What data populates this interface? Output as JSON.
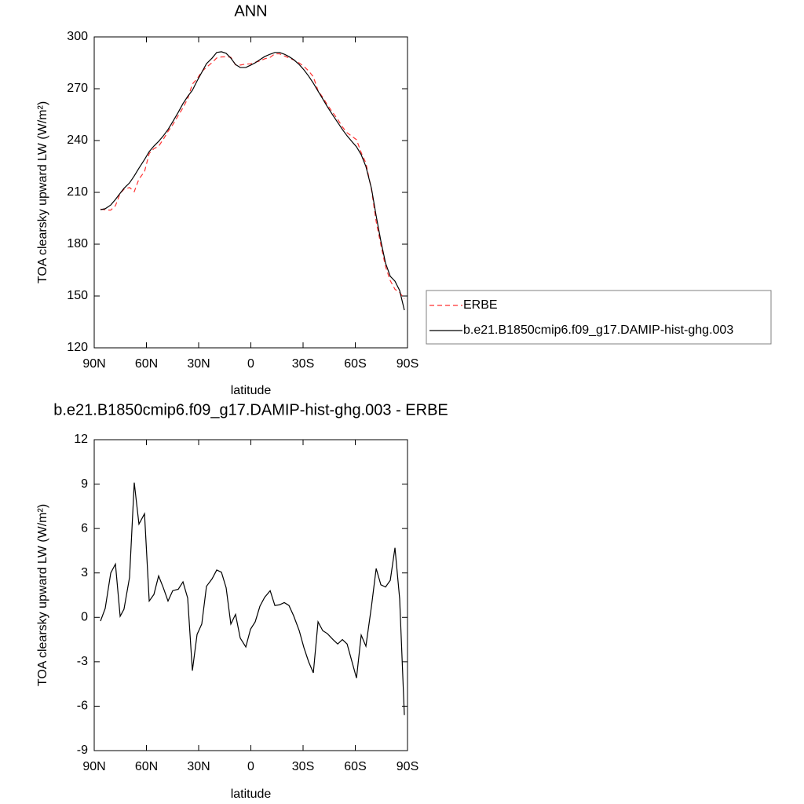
{
  "chart_data": [
    {
      "type": "line",
      "title": "ANN",
      "xlabel": "latitude",
      "ylabel": "TOA clearsky upward LW (W/m²)",
      "xlim": [
        90,
        -90
      ],
      "xticks": [
        {
          "value": 90,
          "label": "90N"
        },
        {
          "value": 60,
          "label": "60N"
        },
        {
          "value": 30,
          "label": "30N"
        },
        0,
        {
          "value": -30,
          "label": "30S"
        },
        {
          "value": -60,
          "label": "60S"
        },
        {
          "value": -90,
          "label": "90S"
        }
      ],
      "ylim": [
        120,
        300
      ],
      "yticks": [
        120,
        150,
        180,
        210,
        240,
        270,
        300
      ],
      "legend": "right",
      "x": [
        86.4,
        83.7,
        80.5,
        77.8,
        75.1,
        72.9,
        69.7,
        67.0,
        64.3,
        61.1,
        58.4,
        55.7,
        53.0,
        50.3,
        47.6,
        44.9,
        41.7,
        39.0,
        36.3,
        33.6,
        30.9,
        28.2,
        25.5,
        22.3,
        19.6,
        16.9,
        14.2,
        11.5,
        8.8,
        6.1,
        2.9,
        0.2,
        -2.5,
        -5.2,
        -7.9,
        -11.1,
        -13.8,
        -16.5,
        -19.2,
        -21.9,
        -24.6,
        -27.8,
        -30.5,
        -33.2,
        -35.9,
        -38.6,
        -41.3,
        -44.0,
        -47.2,
        -49.9,
        -52.6,
        -55.3,
        -58.0,
        -60.7,
        -63.4,
        -66.1,
        -69.3,
        -72.0,
        -74.7,
        -77.4,
        -80.1,
        -82.8,
        -85.5,
        -88.2
      ],
      "series": [
        {
          "name": "ERBE",
          "color": "#ff3030",
          "linestyle": "dashed",
          "values": [
            200.3,
            199.9,
            199.7,
            202.3,
            209.4,
            211.8,
            212.8,
            210.4,
            217.7,
            222.0,
            232.5,
            235.3,
            236.7,
            240.7,
            245.3,
            249.1,
            254.5,
            259.0,
            264.2,
            272.7,
            275.7,
            280.0,
            282.4,
            285.1,
            287.8,
            288.4,
            288.5,
            288.2,
            283.8,
            283.7,
            284.3,
            284.4,
            285.3,
            286.1,
            287.3,
            288.2,
            290.2,
            290.2,
            289.0,
            287.8,
            286.7,
            284.9,
            282.9,
            280.3,
            276.9,
            268.9,
            265.0,
            260.6,
            256.0,
            252.3,
            247.9,
            244.5,
            242.5,
            240.5,
            233.0,
            227.0,
            211.6,
            193.1,
            179.6,
            167.0,
            158.9,
            153.9,
            152.0,
            148.4
          ]
        },
        {
          "name": "b.e21.B1850cmip6.f09_g17.DAMIP-hist-ghg.003",
          "color": "#000000",
          "linestyle": "solid",
          "values": [
            200.0,
            200.5,
            202.7,
            205.9,
            209.5,
            212.3,
            215.5,
            219.5,
            224,
            229,
            233.6,
            236.8,
            239.5,
            242.7,
            246.4,
            250.9,
            256.4,
            261.4,
            265.5,
            269.1,
            274.5,
            279.5,
            284.5,
            287.7,
            291,
            291.4,
            290.5,
            287.7,
            284,
            282.3,
            282.3,
            283.6,
            285,
            286.8,
            288.6,
            290,
            291,
            291,
            290,
            288.6,
            286.8,
            284,
            280.9,
            277.3,
            273.2,
            268.6,
            264.1,
            259.5,
            254.5,
            250.5,
            246.4,
            242.7,
            239.5,
            236.4,
            231.8,
            225,
            212.3,
            196.4,
            181.8,
            169,
            161.4,
            158.6,
            153.2,
            141.8
          ]
        }
      ]
    },
    {
      "type": "line",
      "title": "b.e21.B1850cmip6.f09_g17.DAMIP-hist-ghg.003 - ERBE",
      "xlabel": "latitude",
      "ylabel": "TOA clearsky upward LW (W/m²)",
      "xlim": [
        90,
        -90
      ],
      "xticks": [
        {
          "value": 90,
          "label": "90N"
        },
        {
          "value": 60,
          "label": "60N"
        },
        {
          "value": 30,
          "label": "30N"
        },
        0,
        {
          "value": -30,
          "label": "30S"
        },
        {
          "value": -60,
          "label": "60S"
        },
        {
          "value": -90,
          "label": "90S"
        }
      ],
      "ylim": [
        -9,
        12
      ],
      "yticks": [
        -9,
        -6,
        -3,
        0,
        3,
        6,
        9,
        12
      ],
      "color": "#000000",
      "x": [
        86.4,
        83.7,
        80.5,
        77.8,
        75.1,
        72.9,
        69.7,
        67.0,
        64.3,
        61.1,
        58.4,
        55.7,
        53.0,
        50.3,
        47.6,
        44.9,
        41.7,
        39.0,
        36.3,
        33.6,
        30.9,
        28.2,
        25.5,
        22.3,
        19.6,
        16.9,
        14.2,
        11.5,
        8.8,
        6.1,
        2.9,
        0.2,
        -2.5,
        -5.2,
        -7.9,
        -11.1,
        -13.8,
        -16.5,
        -19.2,
        -21.9,
        -24.6,
        -27.8,
        -30.5,
        -33.2,
        -35.9,
        -38.6,
        -41.3,
        -44.0,
        -47.2,
        -49.9,
        -52.6,
        -55.3,
        -58.0,
        -60.7,
        -63.4,
        -66.1,
        -69.3,
        -72.0,
        -74.7,
        -77.4,
        -80.1,
        -82.8,
        -85.5,
        -88.2
      ],
      "values": [
        -0.25,
        0.6,
        3.0,
        3.6,
        0.07,
        0.55,
        2.7,
        9.1,
        6.3,
        7.0,
        1.1,
        1.55,
        2.8,
        2.0,
        1.1,
        1.8,
        1.9,
        2.4,
        1.3,
        -3.6,
        -1.15,
        -0.45,
        2.1,
        2.6,
        3.2,
        3.05,
        2.0,
        -0.45,
        0.2,
        -1.4,
        -2.0,
        -0.8,
        -0.3,
        0.75,
        1.35,
        1.8,
        0.8,
        0.85,
        1.0,
        0.8,
        0.1,
        -0.9,
        -2.05,
        -3.0,
        -3.75,
        -0.3,
        -0.9,
        -1.1,
        -1.5,
        -1.8,
        -1.5,
        -1.8,
        -2.95,
        -4.1,
        -1.2,
        -1.95,
        0.75,
        3.3,
        2.2,
        2.05,
        2.5,
        4.7,
        1.25,
        -6.6
      ]
    }
  ]
}
